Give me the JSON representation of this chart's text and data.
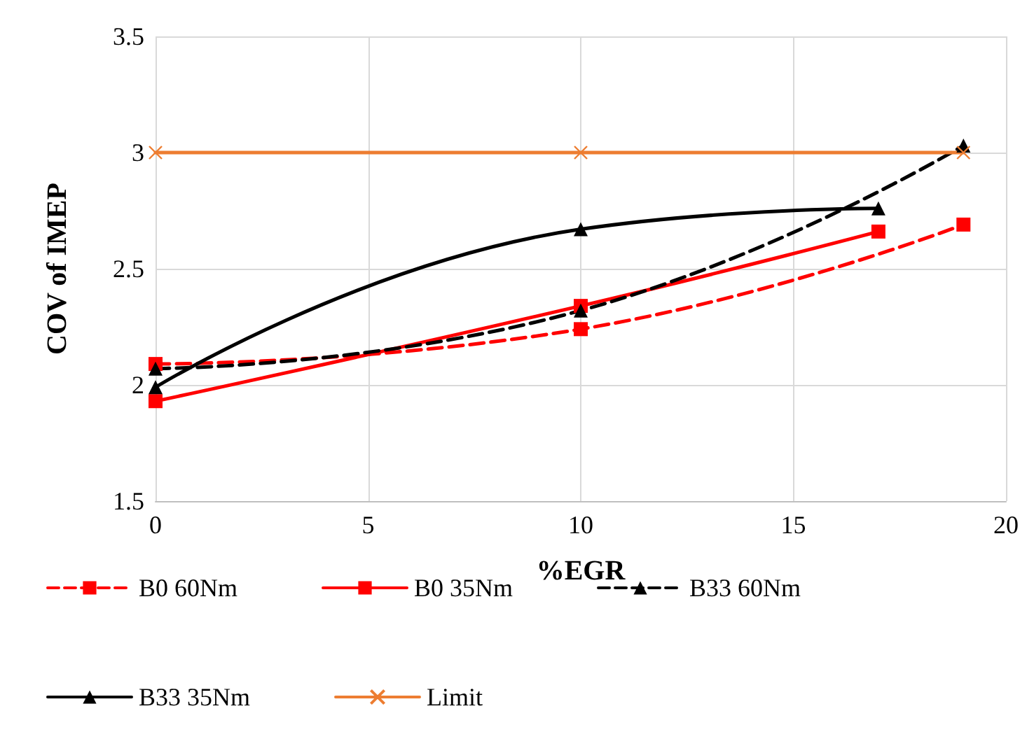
{
  "chart_data": {
    "type": "line",
    "xlabel": "%EGR",
    "ylabel": "COV of IMEP",
    "xlim": [
      0,
      20
    ],
    "xticks": [
      0,
      5,
      10,
      15,
      20
    ],
    "ylim": [
      1.5,
      3.5
    ],
    "yticks": [
      1.5,
      2,
      2.5,
      3,
      3.5
    ],
    "grid": true,
    "legend": "bottom",
    "series": [
      {
        "name": "B0 60Nm",
        "color": "#ff0000",
        "x": [
          0,
          10,
          19
        ],
        "values": [
          2.09,
          2.24,
          2.69
        ],
        "marker": "square",
        "line_style": "dashed"
      },
      {
        "name": "B0 35Nm",
        "color": "#ff0000",
        "x": [
          0,
          10,
          17
        ],
        "values": [
          1.93,
          2.34,
          2.66
        ],
        "marker": "square",
        "line_style": "solid"
      },
      {
        "name": "B33 60Nm",
        "color": "#000000",
        "x": [
          0,
          10,
          19
        ],
        "values": [
          2.07,
          2.32,
          3.03
        ],
        "marker": "triangle",
        "line_style": "dashed"
      },
      {
        "name": "B33 35Nm",
        "color": "#000000",
        "x": [
          0,
          10,
          17
        ],
        "values": [
          1.99,
          2.67,
          2.76
        ],
        "marker": "triangle",
        "line_style": "solid"
      },
      {
        "name": "Limit",
        "color": "#ed7d31",
        "x": [
          0,
          10,
          19
        ],
        "values": [
          3,
          3,
          3
        ],
        "marker": "cross",
        "line_style": "solid"
      }
    ]
  }
}
